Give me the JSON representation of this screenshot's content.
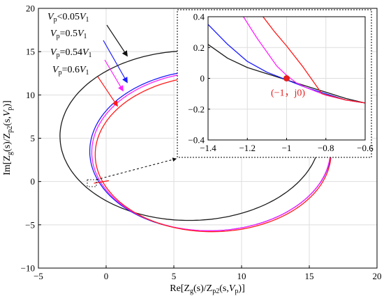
{
  "chart_data": [
    {
      "type": "line",
      "title": "",
      "grid": true,
      "xlim": [
        -5,
        20
      ],
      "ylim": [
        -10,
        20
      ],
      "xticks": [
        -5,
        0,
        5,
        10,
        15,
        20
      ],
      "yticks": [
        -10,
        -5,
        0,
        5,
        10,
        15,
        20
      ],
      "xtick_labels": [
        "−5",
        "0",
        "5",
        "10",
        "15",
        "20"
      ],
      "ytick_labels": [
        "−10",
        "−5",
        "0",
        "5",
        "10",
        "15",
        "20"
      ],
      "xlabel": {
        "prefix": "Re[Z",
        "sub1": "g",
        "mid": "(s)/Z",
        "sub2": "p2",
        "mid2": "(s,",
        "var": "V",
        "sub3": "p",
        "suffix": ")]"
      },
      "ylabel": {
        "prefix": "Im[Z",
        "sub1": "g",
        "mid": "(s)/Z",
        "sub2": "p2",
        "mid2": "(s,",
        "var": "V",
        "sub3": "p",
        "suffix": ")]"
      },
      "series": [
        {
          "name": "Vp<0.05V1",
          "color": "#1a1a1a",
          "center": [
            6.2,
            5.3
          ],
          "rx": 9.6,
          "ry": 9.8,
          "tilt": -10,
          "legend": {
            "var": "V",
            "sub": "p",
            "rel": "<0.05",
            "var2": "V",
            "sub2": "1"
          }
        },
        {
          "name": "Vp=0.5V1",
          "color": "#1a1aff",
          "center": [
            7.7,
            3.6
          ],
          "rx": 8.9,
          "ry": 9.3,
          "tilt": -8,
          "legend": {
            "var": "V",
            "sub": "p",
            "rel": "=0.5",
            "var2": "V",
            "sub2": "1"
          }
        },
        {
          "name": "Vp=0.54V1",
          "color": "#ff22ff",
          "center": [
            7.75,
            3.5
          ],
          "rx": 8.8,
          "ry": 9.2,
          "tilt": -8,
          "legend": {
            "var": "V",
            "sub": "p",
            "rel": "=0.54",
            "var2": "V",
            "sub2": "1"
          }
        },
        {
          "name": "Vp=0.6V1",
          "color": "#ff1a1a",
          "center": [
            7.9,
            3.2
          ],
          "rx": 8.7,
          "ry": 9.0,
          "tilt": -8,
          "legend": {
            "var": "V",
            "sub": "p",
            "rel": "=0.6",
            "var2": "V",
            "sub2": "1"
          }
        }
      ]
    },
    {
      "type": "line",
      "inset": true,
      "title": "",
      "grid": true,
      "xlim": [
        -1.4,
        -0.6
      ],
      "ylim": [
        -0.4,
        0.4
      ],
      "xticks": [
        -1.4,
        -1.2,
        -1.0,
        -0.8,
        -0.6
      ],
      "yticks": [
        -0.4,
        -0.2,
        0,
        0.2,
        0.4
      ],
      "xtick_labels": [
        "−1.4",
        "−1.2",
        "−1",
        "−0.8",
        "−0.6"
      ],
      "ytick_labels": [
        "−0.4",
        "−0.2",
        "0",
        "0.2",
        "0.4"
      ],
      "critical_point": {
        "x": -1,
        "y": 0,
        "label": "(−1，j0)",
        "color": "#e61e1e"
      },
      "series": [
        {
          "name": "Vp<0.05V1",
          "color": "#1a1a1a",
          "points": [
            [
              -1.4,
              0.22
            ],
            [
              -1.3,
              0.13
            ],
            [
              -1.2,
              0.07
            ],
            [
              -1.1,
              0.03
            ],
            [
              -1.0,
              -0.01
            ],
            [
              -0.9,
              -0.05
            ],
            [
              -0.8,
              -0.09
            ],
            [
              -0.7,
              -0.13
            ],
            [
              -0.6,
              -0.16
            ]
          ]
        },
        {
          "name": "Vp=0.5V1",
          "color": "#1a1aff",
          "points": [
            [
              -1.4,
              0.35
            ],
            [
              -1.3,
              0.22
            ],
            [
              -1.2,
              0.11
            ],
            [
              -1.1,
              0.04
            ],
            [
              -1.0,
              -0.01
            ],
            [
              -0.9,
              -0.06
            ],
            [
              -0.8,
              -0.1
            ],
            [
              -0.7,
              -0.14
            ],
            [
              -0.6,
              -0.16
            ]
          ]
        },
        {
          "name": "Vp=0.54V1",
          "color": "#ff22ff",
          "points": [
            [
              -1.22,
              0.4
            ],
            [
              -1.15,
              0.26
            ],
            [
              -1.1,
              0.17
            ],
            [
              -1.05,
              0.08
            ],
            [
              -1.0,
              0.02
            ],
            [
              -0.95,
              -0.03
            ],
            [
              -0.9,
              -0.06
            ],
            [
              -0.8,
              -0.11
            ],
            [
              -0.7,
              -0.14
            ],
            [
              -0.6,
              -0.16
            ]
          ]
        },
        {
          "name": "Vp=0.6V1",
          "color": "#ff1a1a",
          "points": [
            [
              -1.12,
              0.4
            ],
            [
              -1.06,
              0.3
            ],
            [
              -1.0,
              0.21
            ],
            [
              -0.92,
              0.08
            ],
            [
              -0.82,
              -0.1
            ],
            [
              -0.7,
              -0.14
            ],
            [
              -0.6,
              -0.16
            ]
          ]
        }
      ]
    }
  ]
}
